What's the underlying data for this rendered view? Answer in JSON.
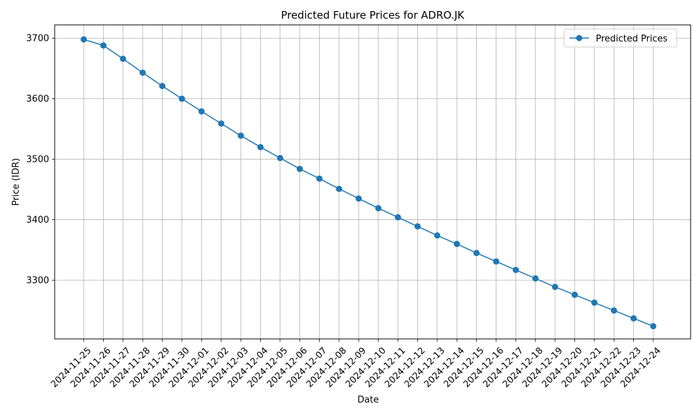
{
  "chart_data": {
    "type": "line",
    "title": "Predicted Future Prices for ADRO.JK",
    "xlabel": "Date",
    "ylabel": "Price (IDR)",
    "x": [
      "2024-11-25",
      "2024-11-26",
      "2024-11-27",
      "2024-11-28",
      "2024-11-29",
      "2024-11-30",
      "2024-12-01",
      "2024-12-02",
      "2024-12-03",
      "2024-12-04",
      "2024-12-05",
      "2024-12-06",
      "2024-12-07",
      "2024-12-08",
      "2024-12-09",
      "2024-12-10",
      "2024-12-11",
      "2024-12-12",
      "2024-12-13",
      "2024-12-14",
      "2024-12-15",
      "2024-12-16",
      "2024-12-17",
      "2024-12-18",
      "2024-12-19",
      "2024-12-20",
      "2024-12-21",
      "2024-12-22",
      "2024-12-23",
      "2024-12-24"
    ],
    "series": [
      {
        "name": "Predicted Prices",
        "color": "#1f77b4",
        "values": [
          3698,
          3688,
          3666,
          3643,
          3621,
          3600,
          3579,
          3559,
          3539,
          3520,
          3502,
          3484,
          3468,
          3451,
          3435,
          3419,
          3404,
          3389,
          3374,
          3360,
          3345,
          3331,
          3317,
          3303,
          3289,
          3276,
          3263,
          3250,
          3237,
          3224
        ]
      }
    ],
    "ylim": [
      3203,
      3722
    ],
    "yticks": [
      3300,
      3400,
      3500,
      3600,
      3700
    ],
    "grid": true,
    "legend": "upper-right",
    "marker": "circle"
  }
}
